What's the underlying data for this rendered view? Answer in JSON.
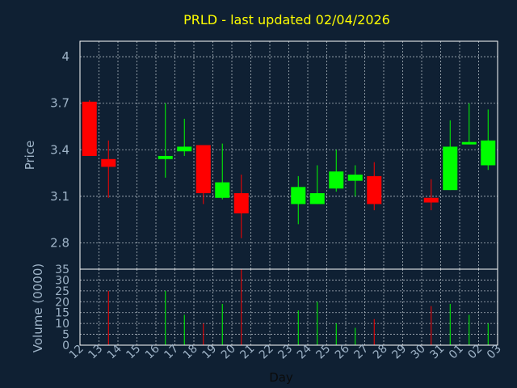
{
  "chart_data": {
    "type": "candlestick",
    "title": "PRLD - last updated 02/04/2026",
    "xlabel": "Day",
    "ylabel_price": "Price",
    "ylabel_volume": "Volume (0000)",
    "x_ticks": [
      "12",
      "13",
      "14",
      "15",
      "16",
      "17",
      "18",
      "19",
      "20",
      "21",
      "22",
      "23",
      "24",
      "25",
      "26",
      "27",
      "28",
      "29",
      "30",
      "31",
      "01",
      "02",
      "03"
    ],
    "price_ticks": [
      2.8,
      3.1,
      3.4,
      3.7,
      4
    ],
    "price_ylim": [
      2.63,
      4.1
    ],
    "volume_ticks": [
      0,
      5,
      10,
      15,
      20,
      25,
      30,
      35
    ],
    "volume_ylim": [
      0,
      35
    ],
    "up_color": "#00ff00",
    "down_color": "#ff0000",
    "grid": true,
    "candles": [
      {
        "day": 0,
        "open": 3.71,
        "high": 3.72,
        "low": 3.36,
        "close": 3.36,
        "volume": 0
      },
      {
        "day": 1,
        "open": 3.34,
        "high": 3.46,
        "low": 3.09,
        "close": 3.29,
        "volume": 25
      },
      {
        "day": 4,
        "open": 3.34,
        "high": 3.7,
        "low": 3.22,
        "close": 3.36,
        "volume": 25
      },
      {
        "day": 5,
        "open": 3.39,
        "high": 3.6,
        "low": 3.36,
        "close": 3.42,
        "volume": 14
      },
      {
        "day": 6,
        "open": 3.43,
        "high": 3.43,
        "low": 3.05,
        "close": 3.12,
        "volume": 10
      },
      {
        "day": 7,
        "open": 3.09,
        "high": 3.44,
        "low": 3.08,
        "close": 3.19,
        "volume": 19
      },
      {
        "day": 8,
        "open": 3.12,
        "high": 3.24,
        "low": 2.83,
        "close": 2.99,
        "volume": 35
      },
      {
        "day": 11,
        "open": 3.05,
        "high": 3.23,
        "low": 2.92,
        "close": 3.16,
        "volume": 16
      },
      {
        "day": 12,
        "open": 3.05,
        "high": 3.3,
        "low": 3.05,
        "close": 3.12,
        "volume": 20
      },
      {
        "day": 13,
        "open": 3.15,
        "high": 3.4,
        "low": 3.13,
        "close": 3.26,
        "volume": 10
      },
      {
        "day": 14,
        "open": 3.2,
        "high": 3.3,
        "low": 3.1,
        "close": 3.24,
        "volume": 8
      },
      {
        "day": 15,
        "open": 3.23,
        "high": 3.32,
        "low": 3.01,
        "close": 3.05,
        "volume": 12
      },
      {
        "day": 18,
        "open": 3.09,
        "high": 3.21,
        "low": 3.01,
        "close": 3.06,
        "volume": 18
      },
      {
        "day": 19,
        "open": 3.14,
        "high": 3.59,
        "low": 3.14,
        "close": 3.42,
        "volume": 19
      },
      {
        "day": 20,
        "open": 3.44,
        "high": 3.7,
        "low": 3.44,
        "close": 3.45,
        "volume": 14
      },
      {
        "day": 21,
        "open": 3.3,
        "high": 3.66,
        "low": 3.27,
        "close": 3.46,
        "volume": 10
      }
    ]
  }
}
